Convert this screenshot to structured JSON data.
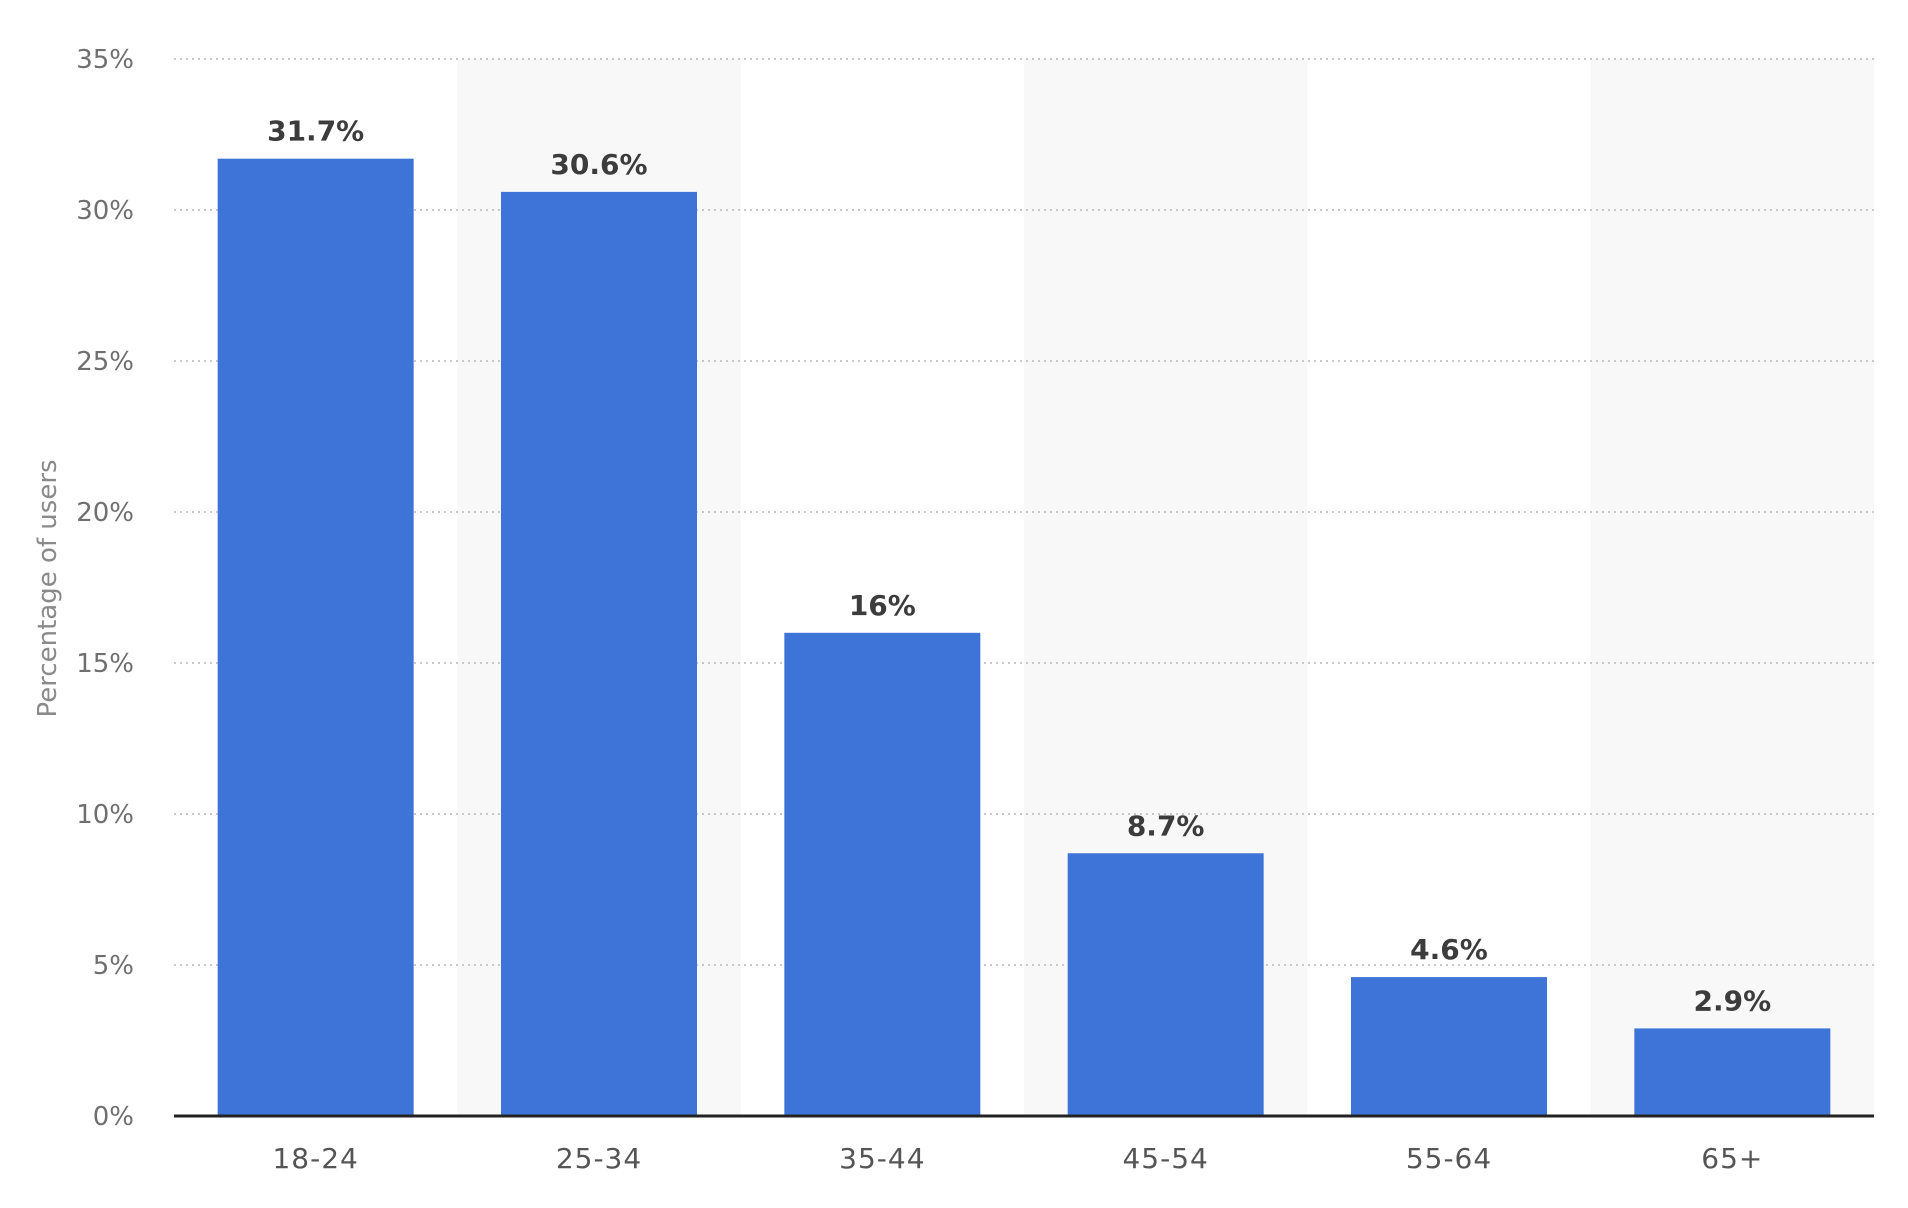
{
  "chart_data": {
    "type": "bar",
    "categories": [
      "18-24",
      "25-34",
      "35-44",
      "45-54",
      "55-64",
      "65+"
    ],
    "values": [
      31.7,
      30.6,
      16,
      8.7,
      4.6,
      2.9
    ],
    "value_labels": [
      "31.7%",
      "30.6%",
      "16%",
      "8.7%",
      "4.6%",
      "2.9%"
    ],
    "title": "",
    "xlabel": "",
    "ylabel": "Percentage of users",
    "ylim": [
      0,
      35
    ],
    "yticks": [
      0,
      5,
      10,
      15,
      20,
      25,
      30,
      35
    ],
    "ytick_labels": [
      "0%",
      "5%",
      "10%",
      "15%",
      "20%",
      "25%",
      "30%",
      "35%"
    ],
    "grid": true,
    "legend": "none",
    "colors": {
      "bar": "#3e74d8",
      "grid": "#c8c8c8",
      "band": "#f8f8f8",
      "axis": "#222222"
    }
  }
}
